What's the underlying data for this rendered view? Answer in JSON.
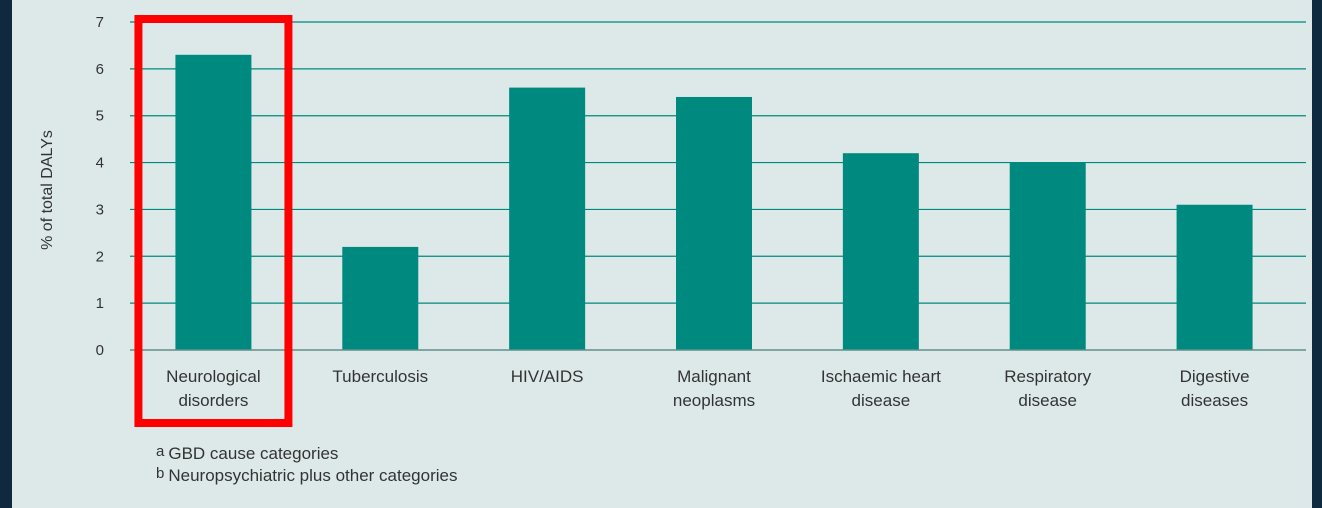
{
  "chart_data": {
    "type": "bar",
    "categories": [
      [
        "Neurological",
        "disorders"
      ],
      [
        "Tuberculosis"
      ],
      [
        "HIV/AIDS"
      ],
      [
        "Malignant",
        "neoplasms"
      ],
      [
        "Ischaemic heart",
        "disease"
      ],
      [
        "Respiratory",
        "disease"
      ],
      [
        "Digestive",
        "diseases"
      ]
    ],
    "values": [
      6.3,
      2.2,
      5.6,
      5.4,
      4.2,
      4.0,
      3.1
    ],
    "yticks": [
      "0",
      "1",
      "2",
      "3",
      "4",
      "5",
      "6",
      "7"
    ],
    "ylabel": "% of total DALYs",
    "ylim": [
      0,
      7
    ],
    "grid": true,
    "bar_color": "#00897f",
    "highlight_index": 0,
    "highlight_color": "#ff0000"
  },
  "footnotes": [
    {
      "marker": "a",
      "text": "GBD cause categories"
    },
    {
      "marker": "b",
      "text": "Neuropsychiatric plus other categories"
    }
  ]
}
